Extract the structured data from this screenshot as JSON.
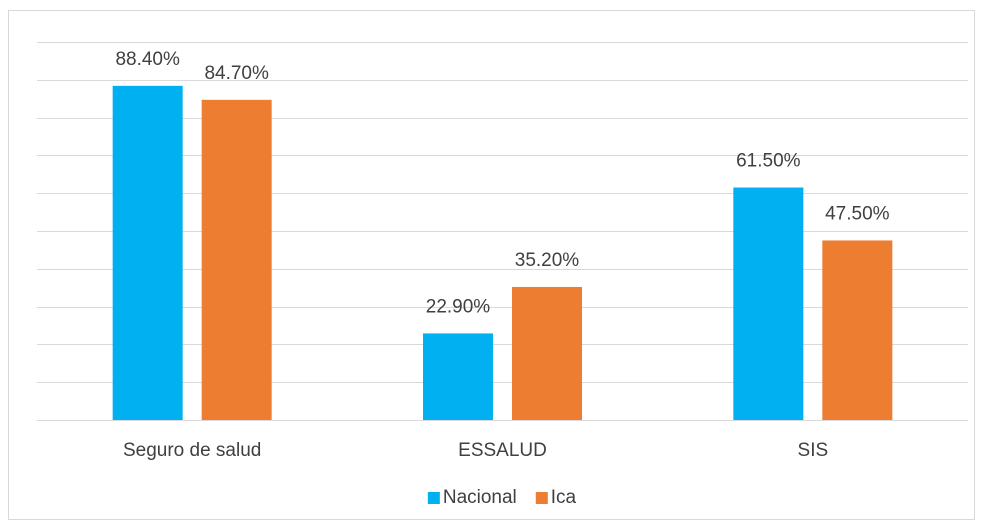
{
  "chart_data": {
    "type": "bar",
    "categories": [
      "Seguro de salud",
      "ESSALUD",
      "SIS"
    ],
    "series": [
      {
        "name": "Nacional",
        "color": "#00b0f0",
        "values": [
          88.4,
          22.9,
          61.5
        ],
        "value_labels": [
          "88.40%",
          "22.90%",
          "61.50%"
        ]
      },
      {
        "name": "Ica",
        "color": "#ed7d31",
        "values": [
          84.7,
          35.2,
          47.5
        ],
        "value_labels": [
          "84.70%",
          "35.20%",
          "47.50%"
        ]
      }
    ],
    "ylim": [
      0,
      100
    ],
    "yticks": [
      0,
      10,
      20,
      30,
      40,
      50,
      60,
      70,
      80,
      90,
      100
    ],
    "grid": true,
    "legend": "bottom"
  }
}
